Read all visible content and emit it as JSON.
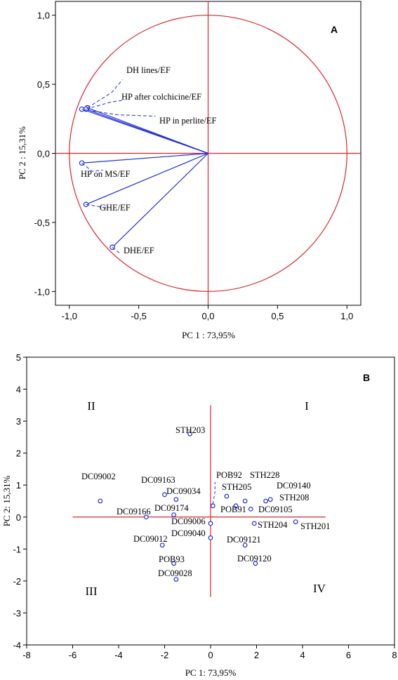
{
  "chart_data": [
    {
      "type": "scatter",
      "panel": "A",
      "xlabel": "PC 1 : 73,95%",
      "ylabel": "PC 2 : 15,31%",
      "xlim": [
        -1.1,
        1.1
      ],
      "ylim": [
        -1.1,
        1.1
      ],
      "xticks": [
        "-1,0",
        "-0,5",
        "0,0",
        "0,5",
        "1,0"
      ],
      "yticks": [
        "1,0",
        "0,5",
        "0,0",
        "-0,5",
        "-1,0"
      ],
      "points": [
        {
          "name": "DH lines/EF",
          "x": -0.87,
          "y": 0.33
        },
        {
          "name": "HP after colchicine/EF",
          "x": -0.88,
          "y": 0.32
        },
        {
          "name": "HP in perlite/EF",
          "x": -0.91,
          "y": 0.32
        },
        {
          "name": "HP on MS/EF",
          "x": -0.91,
          "y": -0.07
        },
        {
          "name": "GHE/EF",
          "x": -0.88,
          "y": -0.37
        },
        {
          "name": "DHE/EF",
          "x": -0.69,
          "y": -0.68
        }
      ]
    },
    {
      "type": "scatter",
      "panel": "B",
      "xlabel": "PC 1: 73,95%",
      "ylabel": "PC 2: 15,31%",
      "xlim": [
        -8,
        8
      ],
      "ylim": [
        -4,
        5
      ],
      "xticks": [
        "-8",
        "-6",
        "-4",
        "-2",
        "0",
        "2",
        "4",
        "6",
        "8"
      ],
      "yticks": [
        "5",
        "4",
        "3",
        "2",
        "1",
        "0",
        "-1",
        "-2",
        "-3",
        "-4"
      ],
      "quadrants": [
        "I",
        "II",
        "III",
        "IV"
      ],
      "points": [
        {
          "name": "STH203",
          "x": -0.9,
          "y": 2.6
        },
        {
          "name": "DC09002",
          "x": -4.8,
          "y": 0.5
        },
        {
          "name": "DC09163",
          "x": -2.0,
          "y": 0.7
        },
        {
          "name": "DC09034",
          "x": -1.5,
          "y": 0.55
        },
        {
          "name": "DC09166",
          "x": -2.8,
          "y": 0.0
        },
        {
          "name": "DC09174",
          "x": -1.6,
          "y": 0.07
        },
        {
          "name": "DC09006",
          "x": 0.0,
          "y": -0.2
        },
        {
          "name": "DC09040",
          "x": 0.0,
          "y": -0.65
        },
        {
          "name": "DC09012",
          "x": -2.1,
          "y": -0.88
        },
        {
          "name": "POB93",
          "x": -1.6,
          "y": -1.45
        },
        {
          "name": "DC09028",
          "x": -1.5,
          "y": -1.95
        },
        {
          "name": "POB92",
          "x": 0.1,
          "y": 0.35
        },
        {
          "name": "STH205",
          "x": 0.7,
          "y": 0.65
        },
        {
          "name": "POB91",
          "x": 1.1,
          "y": 0.35
        },
        {
          "name": "STH228",
          "x": 1.5,
          "y": 0.5
        },
        {
          "name": "DC09105",
          "x": 1.75,
          "y": 0.25
        },
        {
          "name": "STH208",
          "x": 2.4,
          "y": 0.5
        },
        {
          "name": "DC09140",
          "x": 2.6,
          "y": 0.55
        },
        {
          "name": "STH204",
          "x": 1.9,
          "y": -0.2
        },
        {
          "name": "STH201",
          "x": 3.7,
          "y": -0.15
        },
        {
          "name": "DC09121",
          "x": 1.5,
          "y": -0.88
        },
        {
          "name": "DC09120",
          "x": 1.95,
          "y": -1.45
        }
      ]
    }
  ]
}
